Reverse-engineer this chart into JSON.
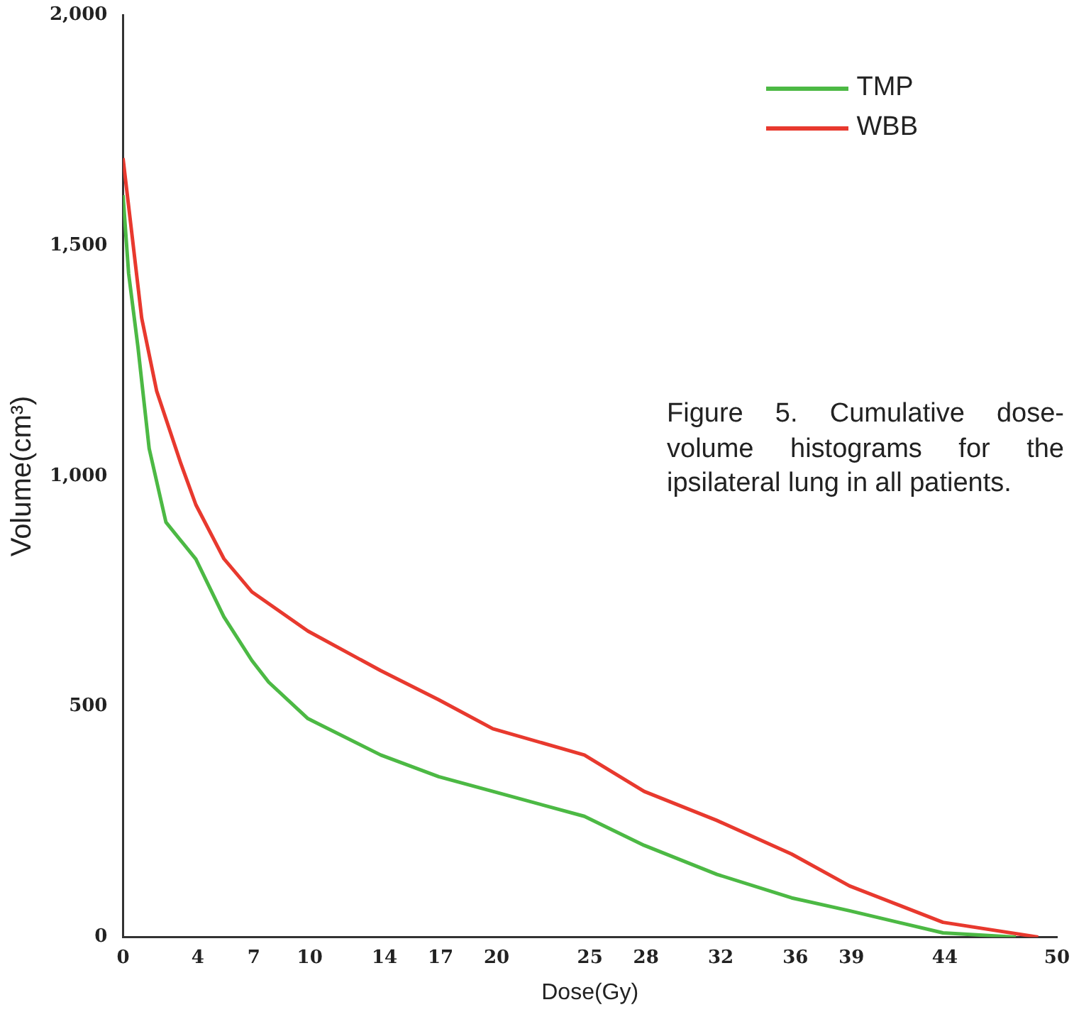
{
  "chart_data": {
    "type": "line",
    "xlabel": "Dose(Gy)",
    "ylabel": "Volume(cm³)",
    "annotations": [
      "Figure 5. Cumulative dose-volume histograms for the ipsilateral lung in all patients."
    ],
    "xlim": [
      0,
      50
    ],
    "xticks": [
      0,
      4,
      7,
      10,
      14,
      17,
      20,
      25,
      28,
      32,
      36,
      39,
      44,
      50
    ],
    "ylim": [
      0,
      2000
    ],
    "yticks": [
      {
        "value": 0,
        "label": "0"
      },
      {
        "value": 500,
        "label": "500"
      },
      {
        "value": 1000,
        "label": "1,000"
      },
      {
        "value": 1500,
        "label": "1,500"
      },
      {
        "value": 2000,
        "label": "2,000"
      }
    ],
    "grid": false,
    "legend": "top right",
    "marker": "none",
    "line_style": "solid",
    "series": [
      {
        "name": "TMP",
        "color": "#4cb944",
        "x": [
          0,
          0.3,
          0.8,
          1.4,
          2.3,
          3.9,
          5.4,
          6.9,
          7.8,
          9.9,
          13.8,
          16.9,
          19.8,
          24.7,
          27.9,
          31.8,
          35.8,
          38.9,
          43.9,
          47.8
        ],
        "values": [
          1610,
          1440,
          1280,
          1060,
          900,
          820,
          695,
          600,
          553,
          474,
          395,
          348,
          316,
          262,
          199,
          136,
          85,
          57,
          9,
          0
        ]
      },
      {
        "name": "WBB",
        "color": "#e8392e",
        "x": [
          0,
          0.5,
          1.0,
          1.8,
          3.1,
          3.9,
          5.4,
          6.9,
          9.9,
          13.8,
          16.9,
          19.8,
          24.7,
          27.9,
          31.8,
          35.8,
          38.9,
          43.9,
          49.0
        ],
        "values": [
          1690,
          1517,
          1343,
          1185,
          1027,
          938,
          821,
          749,
          664,
          578,
          515,
          452,
          395,
          316,
          253,
          180,
          111,
          32,
          0
        ]
      }
    ]
  }
}
